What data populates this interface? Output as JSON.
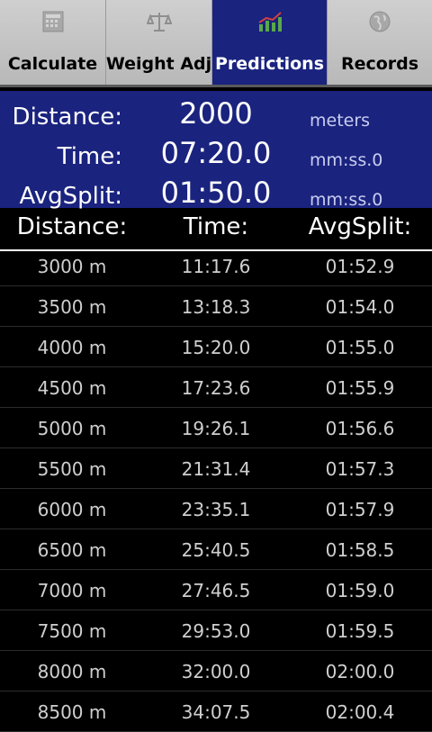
{
  "tabs": [
    {
      "label": "Calculate",
      "icon": "calculator-icon"
    },
    {
      "label": "Weight Adj",
      "icon": "scale-icon"
    },
    {
      "label": "Predictions",
      "icon": "chart-icon"
    },
    {
      "label": "Records",
      "icon": "globe-icon"
    }
  ],
  "active_tab": "Predictions",
  "input": {
    "distance_label": "Distance:",
    "distance_value": "2000",
    "distance_unit": "meters",
    "time_label": "Time:",
    "time_value": "07:20.0",
    "time_unit": "mm:ss.0",
    "split_label": "AvgSplit:",
    "split_value": "01:50.0",
    "split_unit": "mm:ss.0"
  },
  "table": {
    "headers": [
      "Distance:",
      "Time:",
      "AvgSplit:"
    ],
    "rows": [
      [
        "3000 m",
        "11:17.6",
        "01:52.9"
      ],
      [
        "3500 m",
        "13:18.3",
        "01:54.0"
      ],
      [
        "4000 m",
        "15:20.0",
        "01:55.0"
      ],
      [
        "4500 m",
        "17:23.6",
        "01:55.9"
      ],
      [
        "5000 m",
        "19:26.1",
        "01:56.6"
      ],
      [
        "5500 m",
        "21:31.4",
        "01:57.3"
      ],
      [
        "6000 m",
        "23:35.1",
        "01:57.9"
      ],
      [
        "6500 m",
        "25:40.5",
        "01:58.5"
      ],
      [
        "7000 m",
        "27:46.5",
        "01:59.0"
      ],
      [
        "7500 m",
        "29:53.0",
        "01:59.5"
      ],
      [
        "8000 m",
        "32:00.0",
        "02:00.0"
      ],
      [
        "8500 m",
        "34:07.5",
        "02:00.4"
      ]
    ]
  },
  "colors": {
    "accent": "#1a237e",
    "tabbar": "#c4c4c4"
  }
}
